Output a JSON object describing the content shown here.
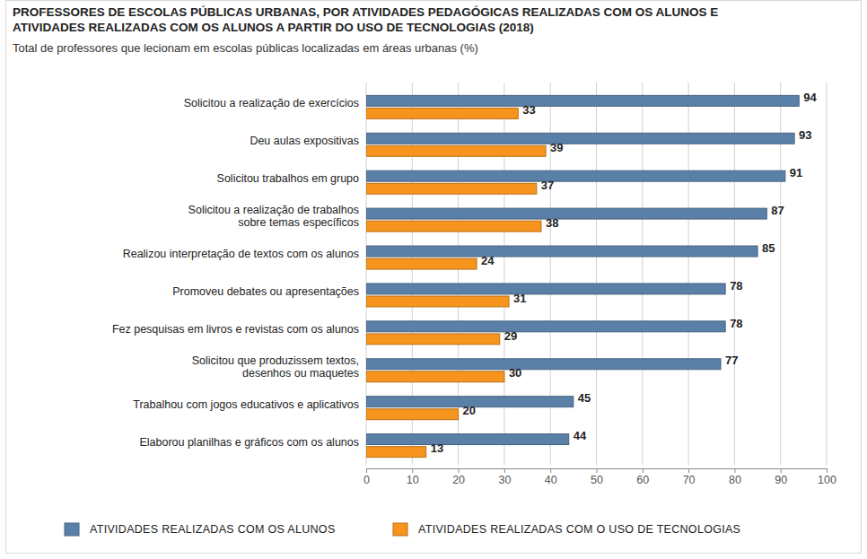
{
  "chart_data": {
    "type": "bar",
    "orientation": "horizontal",
    "title": "PROFESSORES DE ESCOLAS PÚBLICAS URBANAS, POR ATIVIDADES PEDAGÓGICAS REALIZADAS COM OS ALUNOS E\nATIVIDADES REALIZADAS COM OS ALUNOS A PARTIR DO USO DE TECNOLOGIAS (2018)",
    "subtitle": "Total de professores que lecionam em escolas públicas localizadas em áreas urbanas (%)",
    "categories": [
      "Solicitou a realização de exercícios",
      "Deu aulas expositivas",
      "Solicitou trabalhos em grupo",
      "Solicitou a realização de trabalhos\nsobre temas específicos",
      "Realizou interpretação de textos com os alunos",
      "Promoveu debates ou apresentações",
      "Fez pesquisas em livros e revistas com os alunos",
      "Solicitou que produzissem textos,\ndesenhos ou maquetes",
      "Trabalhou com jogos educativos e aplicativos",
      "Elaborou planilhas e gráficos com os alunos"
    ],
    "series": [
      {
        "name": "ATIVIDADES REALIZADAS COM OS ALUNOS",
        "color": "#5b80a8",
        "values": [
          94,
          93,
          91,
          87,
          85,
          78,
          78,
          77,
          45,
          44
        ]
      },
      {
        "name": "ATIVIDADES REALIZADAS COM O USO DE TECNOLOGIAS",
        "color": "#f7941d",
        "values": [
          33,
          39,
          37,
          38,
          24,
          31,
          29,
          30,
          20,
          13
        ]
      }
    ],
    "xlim": [
      0,
      100
    ],
    "xticks": [
      0,
      10,
      20,
      30,
      40,
      50,
      60,
      70,
      80,
      90,
      100
    ],
    "grid": true,
    "legend": "bottom",
    "data_labels": true
  }
}
